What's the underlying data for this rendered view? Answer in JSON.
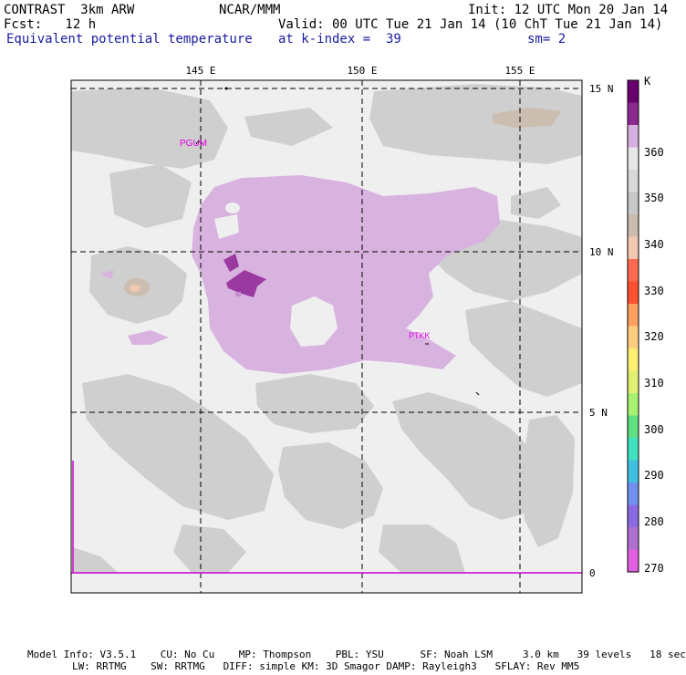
{
  "header": {
    "left1": "CONTRAST  3km ARW",
    "center1": "NCAR/MMM",
    "right1": "Init: 12 UTC Mon 20 Jan 14",
    "left2": "Fcst:   12 h",
    "right2": "Valid: 00 UTC Tue 21 Jan 14 (10 ChT Tue 21 Jan 14)",
    "left3": "Equivalent potential temperature",
    "center3": "at k-index =  39",
    "right3": "sm= 2"
  },
  "map": {
    "lon_labels": [
      "145 E",
      "150 E",
      "155 E"
    ],
    "lat_labels": [
      "15 N",
      "10 N",
      "5 N",
      "0"
    ],
    "stations": [
      "PGUM",
      "PTKK"
    ]
  },
  "colorbar": {
    "unit": "K",
    "labels": [
      "360",
      "350",
      "340",
      "330",
      "320",
      "310",
      "300",
      "290",
      "280",
      "270"
    ],
    "colors": [
      "#e8e8e8",
      "#d7aee0",
      "#b070c0",
      "#8a2a90",
      "#6a0070",
      "#d9d9d9",
      "#c8c8c8",
      "#ccbcae",
      "#f2c8b0",
      "#ff6a50",
      "#ff5030",
      "#ffa060",
      "#ffcc80",
      "#ffef70",
      "#e0f070",
      "#a8f070",
      "#60e080",
      "#40e0c0",
      "#40c0e0",
      "#7090f0",
      "#8a6ae0",
      "#b070d0",
      "#e060e0"
    ]
  },
  "footer": {
    "line1": "Model Info: V3.5.1    CU: No Cu    MP: Thompson    PBL: YSU      SF: Noah LSM     3.0 km   39 levels   18 sec",
    "line2": "LW: RRTMG    SW: RRTMG   DIFF: simple KM: 3D Smagor DAMP: Rayleigh3   SFLAY: Rev MM5"
  }
}
